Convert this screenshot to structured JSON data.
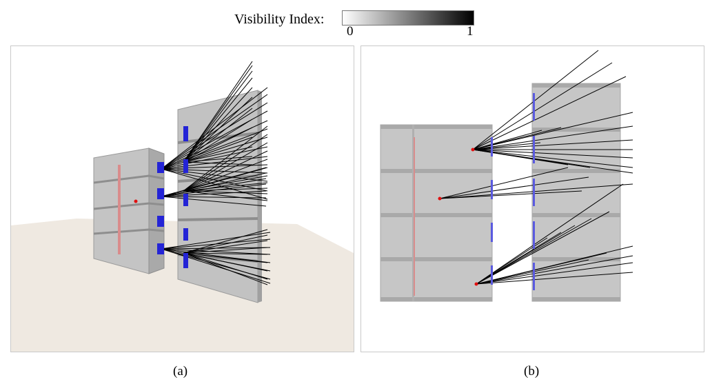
{
  "legend": {
    "label": "Visibility Index:",
    "min_label": "0",
    "max_label": "1",
    "gradient_from": "#ffffff",
    "gradient_to": "#000000"
  },
  "panels": [
    {
      "caption": "(a)",
      "view": "perspective"
    },
    {
      "caption": "(b)",
      "view": "elevation"
    }
  ],
  "colors": {
    "window": "#2424d6",
    "window_outline": "#5a5ae0",
    "viewpoint": "#e01010",
    "sight_line": "#000000",
    "wall": "#bdbdbd",
    "ground": "#efe9e1",
    "interior_marker": "#d98c8c"
  }
}
